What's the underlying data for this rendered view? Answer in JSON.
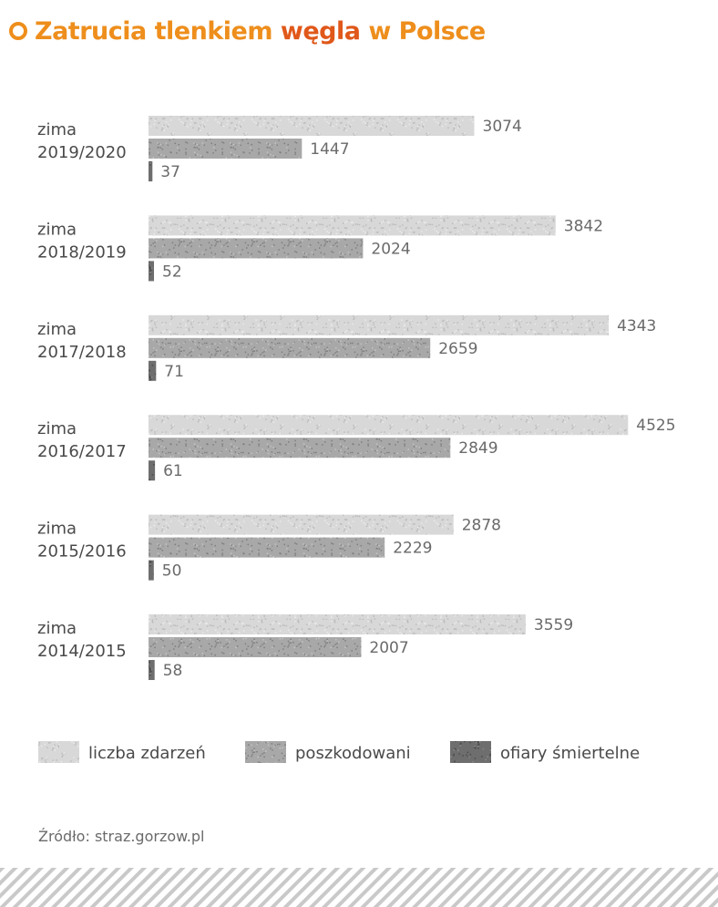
{
  "title": {
    "part1": "Zatrucia tlenkiem ",
    "part2": "węgla",
    "part3": " w Polsce",
    "color1": "#ee8e1c",
    "color2": "#e0581a"
  },
  "source": "Źródło: straz.gorzow.pl",
  "chart_data": {
    "type": "bar",
    "orientation": "horizontal",
    "categories": [
      [
        "zima",
        "2019/2020"
      ],
      [
        "zima",
        "2018/2019"
      ],
      [
        "zima",
        "2017/2018"
      ],
      [
        "zima",
        "2016/2017"
      ],
      [
        "zima",
        "2015/2016"
      ],
      [
        "zima",
        "2014/2015"
      ]
    ],
    "series": [
      {
        "name": "liczba zdarzeń",
        "values": [
          3074,
          3842,
          4343,
          4525,
          2878,
          3559
        ],
        "color": "#d8d8d8"
      },
      {
        "name": "poszkodowani",
        "values": [
          1447,
          2024,
          2659,
          2849,
          2229,
          2007
        ],
        "color": "#a8a8a8"
      },
      {
        "name": "ofiary śmiertelne",
        "values": [
          37,
          52,
          71,
          61,
          50,
          58
        ],
        "color": "#6e6e6e"
      }
    ],
    "xlim": [
      0,
      5000
    ],
    "grid": false,
    "legend_position": "bottom"
  }
}
